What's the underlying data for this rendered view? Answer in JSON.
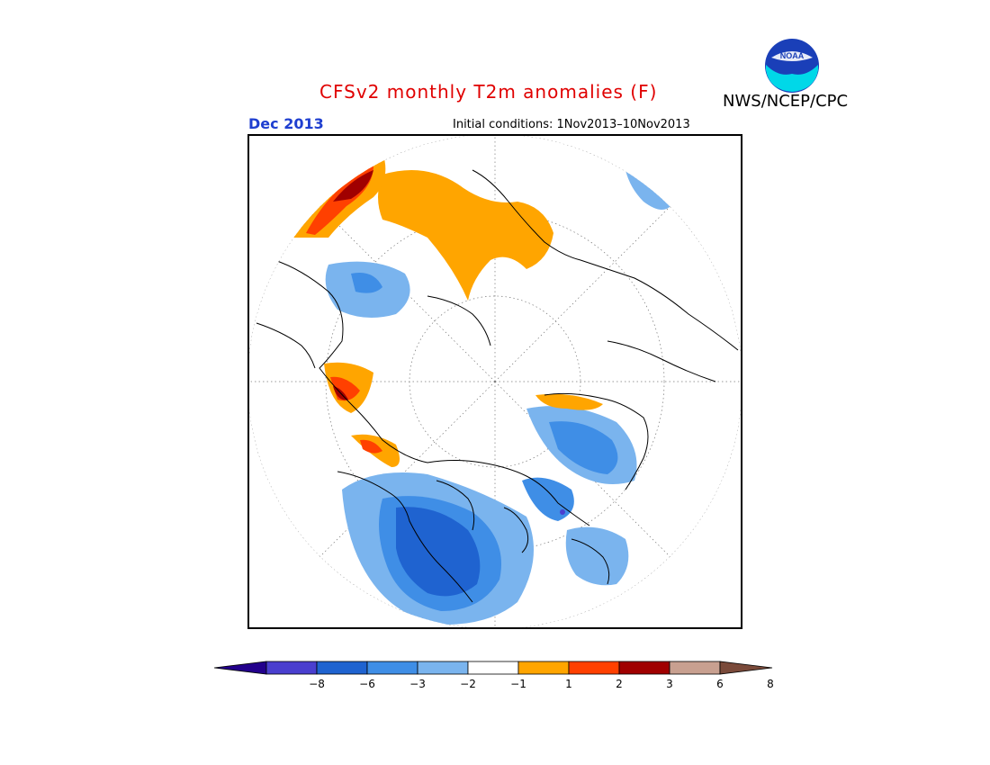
{
  "title": "CFSv2 monthly T2m anomalies (F)",
  "agency": "NWS/NCEP/CPC",
  "logo_text": "NOAA",
  "month": "Dec 2013",
  "initial_conditions": "Initial conditions: 1Nov2013–10Nov2013",
  "colorbar": {
    "colors": [
      "#23008c",
      "#4a3fcf",
      "#1f63d0",
      "#3f8ee6",
      "#7ab4ee",
      "#ffffff",
      "#ffa500",
      "#ff4000",
      "#a00000",
      "#c8a090",
      "#7a4a3a"
    ],
    "ticks": [
      "−8",
      "−6",
      "−3",
      "−2",
      "−1",
      "1",
      "2",
      "3",
      "6",
      "8"
    ]
  }
}
